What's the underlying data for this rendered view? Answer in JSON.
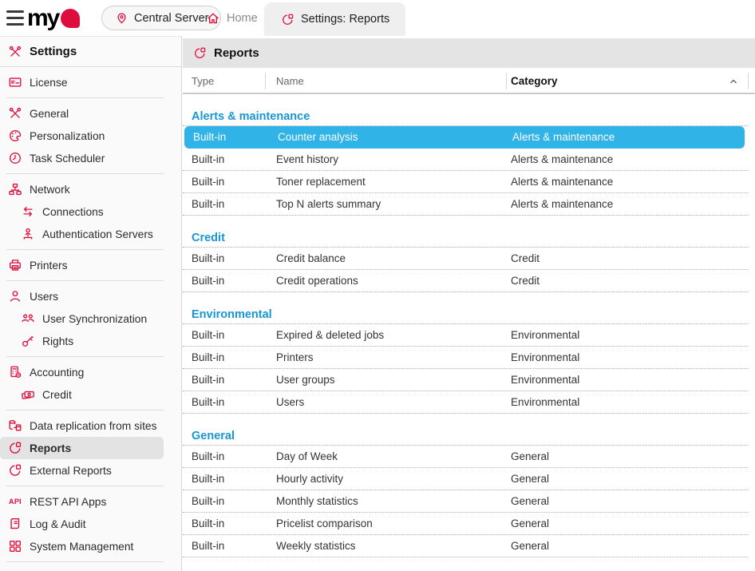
{
  "topbar": {
    "server": "Central Server",
    "home": "Home",
    "active_tab": "Settings: Reports"
  },
  "icons": {
    "api_text": "API"
  },
  "colors": {
    "accent_red": "#de0d3d",
    "selection_blue": "#30b3e7",
    "group_blue": "#1697d4",
    "sidebar_selected": "#e3e3e3",
    "header_gray": "#e4e4e4"
  },
  "sidebar": {
    "header": {
      "label": "Settings",
      "icon": "tools"
    },
    "groups": [
      [
        {
          "label": "License",
          "icon": "license"
        }
      ],
      [
        {
          "label": "General",
          "icon": "tools"
        },
        {
          "label": "Personalization",
          "icon": "palette"
        },
        {
          "label": "Task Scheduler",
          "icon": "clock"
        }
      ],
      [
        {
          "label": "Network",
          "icon": "network"
        },
        {
          "label": "Connections",
          "icon": "connections",
          "indent": true
        },
        {
          "label": "Authentication Servers",
          "icon": "auth",
          "indent": true
        }
      ],
      [
        {
          "label": "Printers",
          "icon": "printer"
        }
      ],
      [
        {
          "label": "Users",
          "icon": "user"
        },
        {
          "label": "User Synchronization",
          "icon": "user-sync",
          "indent": true
        },
        {
          "label": "Rights",
          "icon": "key",
          "indent": true
        }
      ],
      [
        {
          "label": "Accounting",
          "icon": "calculator"
        },
        {
          "label": "Credit",
          "icon": "banknotes",
          "indent": true
        }
      ],
      [
        {
          "label": "Data replication from sites",
          "icon": "replication"
        },
        {
          "label": "Reports",
          "icon": "pie",
          "selected": true
        },
        {
          "label": "External Reports",
          "icon": "pie"
        }
      ],
      [
        {
          "label": "REST API Apps",
          "icon": "api"
        },
        {
          "label": "Log & Audit",
          "icon": "scroll"
        },
        {
          "label": "System Management",
          "icon": "grid"
        }
      ]
    ]
  },
  "main": {
    "title": "Reports",
    "columns": [
      "Type",
      "Name",
      "Category"
    ],
    "sort_column": "Category",
    "sort_direction": "ascending",
    "groups": [
      {
        "name": "Alerts & maintenance",
        "rows": [
          {
            "type": "Built-in",
            "name": "Counter analysis",
            "category": "Alerts & maintenance",
            "selected": true
          },
          {
            "type": "Built-in",
            "name": "Event history",
            "category": "Alerts & maintenance"
          },
          {
            "type": "Built-in",
            "name": "Toner replacement",
            "category": "Alerts & maintenance"
          },
          {
            "type": "Built-in",
            "name": "Top N alerts summary",
            "category": "Alerts & maintenance"
          }
        ]
      },
      {
        "name": "Credit",
        "rows": [
          {
            "type": "Built-in",
            "name": "Credit balance",
            "category": "Credit"
          },
          {
            "type": "Built-in",
            "name": "Credit operations",
            "category": "Credit"
          }
        ]
      },
      {
        "name": "Environmental",
        "rows": [
          {
            "type": "Built-in",
            "name": "Expired & deleted jobs",
            "category": "Environmental"
          },
          {
            "type": "Built-in",
            "name": "Printers",
            "category": "Environmental"
          },
          {
            "type": "Built-in",
            "name": "User groups",
            "category": "Environmental"
          },
          {
            "type": "Built-in",
            "name": "Users",
            "category": "Environmental"
          }
        ]
      },
      {
        "name": "General",
        "rows": [
          {
            "type": "Built-in",
            "name": "Day of Week",
            "category": "General"
          },
          {
            "type": "Built-in",
            "name": "Hourly activity",
            "category": "General"
          },
          {
            "type": "Built-in",
            "name": "Monthly statistics",
            "category": "General"
          },
          {
            "type": "Built-in",
            "name": "Pricelist comparison",
            "category": "General"
          },
          {
            "type": "Built-in",
            "name": "Weekly statistics",
            "category": "General"
          }
        ]
      }
    ]
  }
}
